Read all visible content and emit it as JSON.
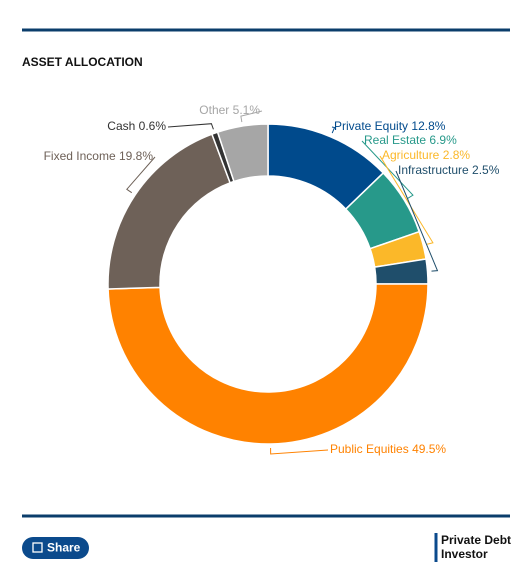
{
  "chart_data": {
    "type": "pie",
    "donut": true,
    "title": "ASSET ALLOCATION",
    "categories": [
      "Private Equity",
      "Real Estate",
      "Agriculture",
      "Infrastructure",
      "Public Equities",
      "Fixed Income",
      "Cash",
      "Other"
    ],
    "values": [
      12.8,
      6.9,
      2.8,
      2.5,
      49.5,
      19.8,
      0.6,
      5.1
    ],
    "value_labels": [
      "12.8%",
      "6.9%",
      "2.8%",
      "2.5%",
      "49.5%",
      "19.8%",
      "0.6%",
      "5.1%"
    ],
    "colors": [
      "#004a8c",
      "#27998a",
      "#fbb829",
      "#1f4e6b",
      "#ff8200",
      "#6e6158",
      "#333333",
      "#a6a6a6"
    ]
  },
  "share_button": "Share",
  "logo": [
    "Private Debt",
    "Investor"
  ]
}
